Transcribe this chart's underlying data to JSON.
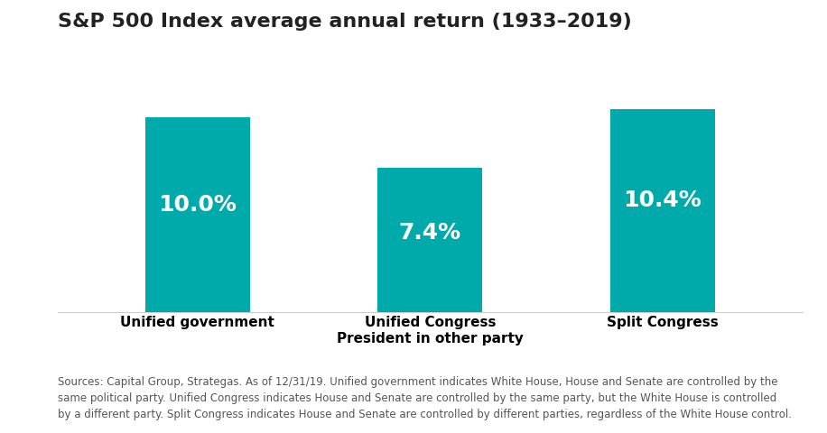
{
  "title": "S&P 500 Index average annual return (1933–2019)",
  "categories": [
    "Unified government",
    "Unified Congress\nPresident in other party",
    "Split Congress"
  ],
  "values": [
    10.0,
    7.4,
    10.4
  ],
  "bar_labels": [
    "10.0%",
    "7.4%",
    "10.4%"
  ],
  "bar_color": "#00AAAA",
  "label_color": "#ffffff",
  "label_fontsize": 18,
  "bar_label_fontweight": "bold",
  "title_fontsize": 16,
  "tick_fontsize": 11,
  "ylim": [
    0,
    12
  ],
  "background_color": "#ffffff",
  "footnote": "Sources: Capital Group, Strategas. As of 12/31/19. Unified government indicates White House, House and Senate are controlled by the\nsame political party. Unified Congress indicates House and Senate are controlled by the same party, but the White House is controlled\nby a different party. Split Congress indicates House and Senate are controlled by different parties, regardless of the White House control.",
  "footnote_fontsize": 8.5
}
